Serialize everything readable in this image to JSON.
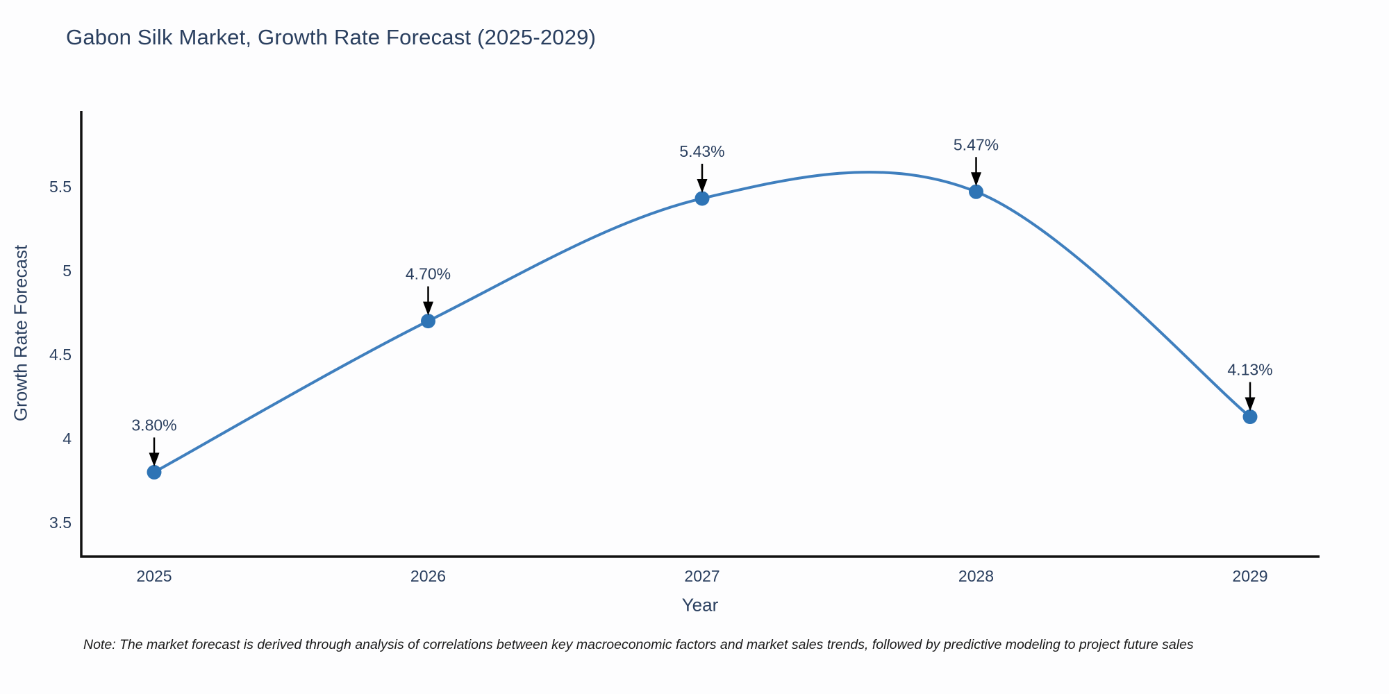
{
  "page": {
    "background": "#fdfdfe"
  },
  "header": {
    "title": "Gabon Silk Market, Growth Rate Forecast (2025-2029)"
  },
  "chart_data": {
    "type": "line",
    "line_shape": "spline",
    "title": "Gabon Silk Market, Growth Rate Forecast (2025-2029)",
    "xlabel": "Year",
    "ylabel": "Growth Rate Forecast",
    "x": [
      2025,
      2026,
      2027,
      2028,
      2029
    ],
    "values": [
      3.8,
      4.7,
      5.43,
      5.47,
      4.13
    ],
    "point_labels": [
      "3.80%",
      "4.70%",
      "5.43%",
      "5.47%",
      "4.13%"
    ],
    "x_tick_labels": [
      "2025",
      "2026",
      "2027",
      "2028",
      "2029"
    ],
    "y_tick_values": [
      3.5,
      4.0,
      4.5,
      5.0,
      5.5
    ],
    "y_tick_labels": [
      "3.5",
      "4",
      "4.5",
      "5",
      "5.5"
    ],
    "xlim": [
      2024.73,
      2029.25
    ],
    "ylim": [
      3.3,
      5.96
    ],
    "grid": false,
    "legend": "none",
    "colors": {
      "line": "#3f7fbe",
      "marker": "#2e74b5",
      "axis_line": "#111111",
      "tick_text": "#2a3f5f",
      "annotation_text": "#2a3f5f",
      "annotation_arrow": "#000000"
    }
  },
  "note": {
    "text": "Note: The market forecast is derived through analysis of correlations between key macroeconomic factors and market sales trends, followed by predictive modeling to project future sales"
  }
}
